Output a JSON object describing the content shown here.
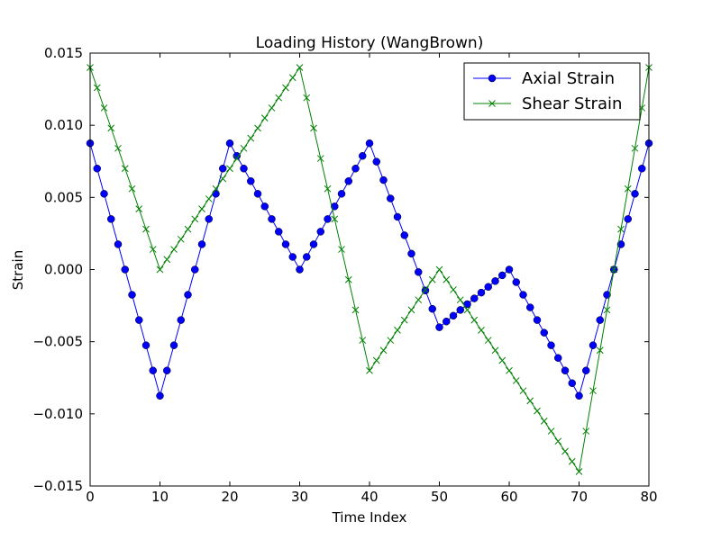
{
  "chart_data": {
    "type": "line",
    "title": "Loading History (WangBrown)",
    "xlabel": "Time Index",
    "ylabel": "Strain",
    "xlim": [
      0,
      80
    ],
    "ylim": [
      -0.015,
      0.015
    ],
    "xticks": [
      0,
      10,
      20,
      30,
      40,
      50,
      60,
      70,
      80
    ],
    "xtick_labels": [
      "0",
      "10",
      "20",
      "30",
      "40",
      "50",
      "60",
      "70",
      "80"
    ],
    "yticks": [
      0.015,
      0.01,
      0.005,
      0.0,
      -0.005,
      -0.01,
      -0.015
    ],
    "ytick_labels": [
      "0.015",
      "0.010",
      "0.005",
      "0.000",
      "−0.005",
      "−0.010",
      "−0.015"
    ],
    "grid": false,
    "legend_position": "upper right",
    "series": [
      {
        "name": "Axial Strain",
        "color": "#0000ff",
        "marker": "circle",
        "breakpoints": [
          [
            0,
            0.00875
          ],
          [
            10,
            -0.00875
          ],
          [
            20,
            0.00875
          ],
          [
            30,
            0.0
          ],
          [
            40,
            0.00875
          ],
          [
            50,
            -0.004
          ],
          [
            60,
            0.0
          ],
          [
            70,
            -0.00875
          ],
          [
            80,
            0.00875
          ]
        ]
      },
      {
        "name": "Shear Strain",
        "color": "#008000",
        "marker": "x",
        "breakpoints": [
          [
            0,
            0.014
          ],
          [
            10,
            0.0
          ],
          [
            30,
            0.014
          ],
          [
            40,
            -0.007
          ],
          [
            50,
            0.0
          ],
          [
            70,
            -0.014
          ],
          [
            80,
            0.014
          ]
        ]
      }
    ],
    "x_values": "0..80 step 1"
  }
}
